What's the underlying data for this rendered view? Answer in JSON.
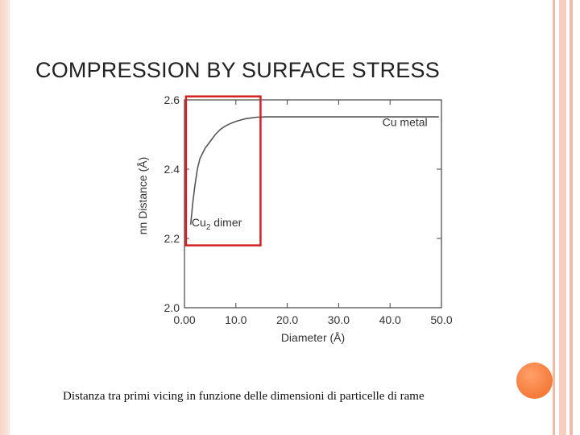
{
  "slide": {
    "title": "COMPRESSION BY SURFACE STRESS",
    "caption": "Distanza tra primi vicing in funzione delle dimensioni di particelle di rame",
    "accent_color": "#f26a24",
    "border_color": "#f4b9a3"
  },
  "chart_data": {
    "type": "line",
    "title": "",
    "xlabel": "Diameter (Å)",
    "ylabel": "nn Distance (Å)",
    "xlim": [
      0,
      50
    ],
    "ylim": [
      2.0,
      2.6
    ],
    "xticks": [
      "0.00",
      "10.0",
      "20.0",
      "30.0",
      "40.0",
      "50.0"
    ],
    "yticks": [
      "2.0",
      "2.2",
      "2.4",
      "2.6"
    ],
    "grid": false,
    "series": [
      {
        "x": [
          1.2,
          1.6,
          2.0,
          2.5,
          3.0,
          4.0,
          5.0,
          6.0,
          7.0,
          8.0,
          9.0,
          10.0,
          11.0,
          12.0,
          13.0,
          14.0,
          16.0,
          20.0,
          30.0,
          40.0,
          49.5
        ],
        "y": [
          2.24,
          2.3,
          2.35,
          2.4,
          2.43,
          2.46,
          2.48,
          2.5,
          2.515,
          2.525,
          2.532,
          2.538,
          2.542,
          2.546,
          2.548,
          2.55,
          2.551,
          2.551,
          2.551,
          2.551,
          2.551
        ],
        "color": "#555555"
      }
    ],
    "annotations": [
      {
        "text": "Cu metal",
        "x": 38.5,
        "y": 2.525
      },
      {
        "text": "Cu",
        "sub": "2",
        "suffix": " dimer",
        "x": 1.4,
        "y": 2.235
      }
    ],
    "highlight_box": {
      "x0": 0.3,
      "x1": 14.8,
      "y0": 2.18,
      "y1": 2.61,
      "color": "#d42020"
    }
  }
}
